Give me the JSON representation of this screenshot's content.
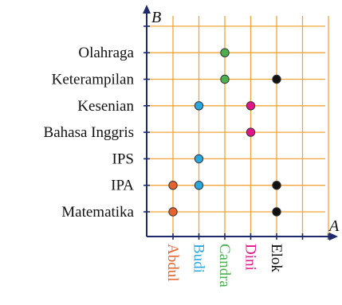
{
  "axes": {
    "x_name": "A",
    "y_name": "B",
    "grid_color": "#f0a53a",
    "axis_color": "#1f2a6b"
  },
  "x_categories": [
    {
      "label": "Abdul",
      "color": "#e8622d"
    },
    {
      "label": "Budi",
      "color": "#29a8e0"
    },
    {
      "label": "Candra",
      "color": "#4caf50"
    },
    {
      "label": "Dini",
      "color": "#e0158a"
    },
    {
      "label": "Elok",
      "color": "#111111"
    }
  ],
  "y_categories": [
    "Matematika",
    "IPA",
    "IPS",
    "Bahasa Inggris",
    "Kesenian",
    "Keterampilan",
    "Olahraga"
  ],
  "points": [
    {
      "x": "Abdul",
      "y": "Matematika"
    },
    {
      "x": "Abdul",
      "y": "IPA"
    },
    {
      "x": "Budi",
      "y": "IPA"
    },
    {
      "x": "Budi",
      "y": "IPS"
    },
    {
      "x": "Budi",
      "y": "Kesenian"
    },
    {
      "x": "Candra",
      "y": "Keterampilan"
    },
    {
      "x": "Candra",
      "y": "Olahraga"
    },
    {
      "x": "Dini",
      "y": "Bahasa Inggris"
    },
    {
      "x": "Dini",
      "y": "Kesenian"
    },
    {
      "x": "Elok",
      "y": "Matematika"
    },
    {
      "x": "Elok",
      "y": "IPA"
    },
    {
      "x": "Elok",
      "y": "Keterampilan"
    }
  ]
}
